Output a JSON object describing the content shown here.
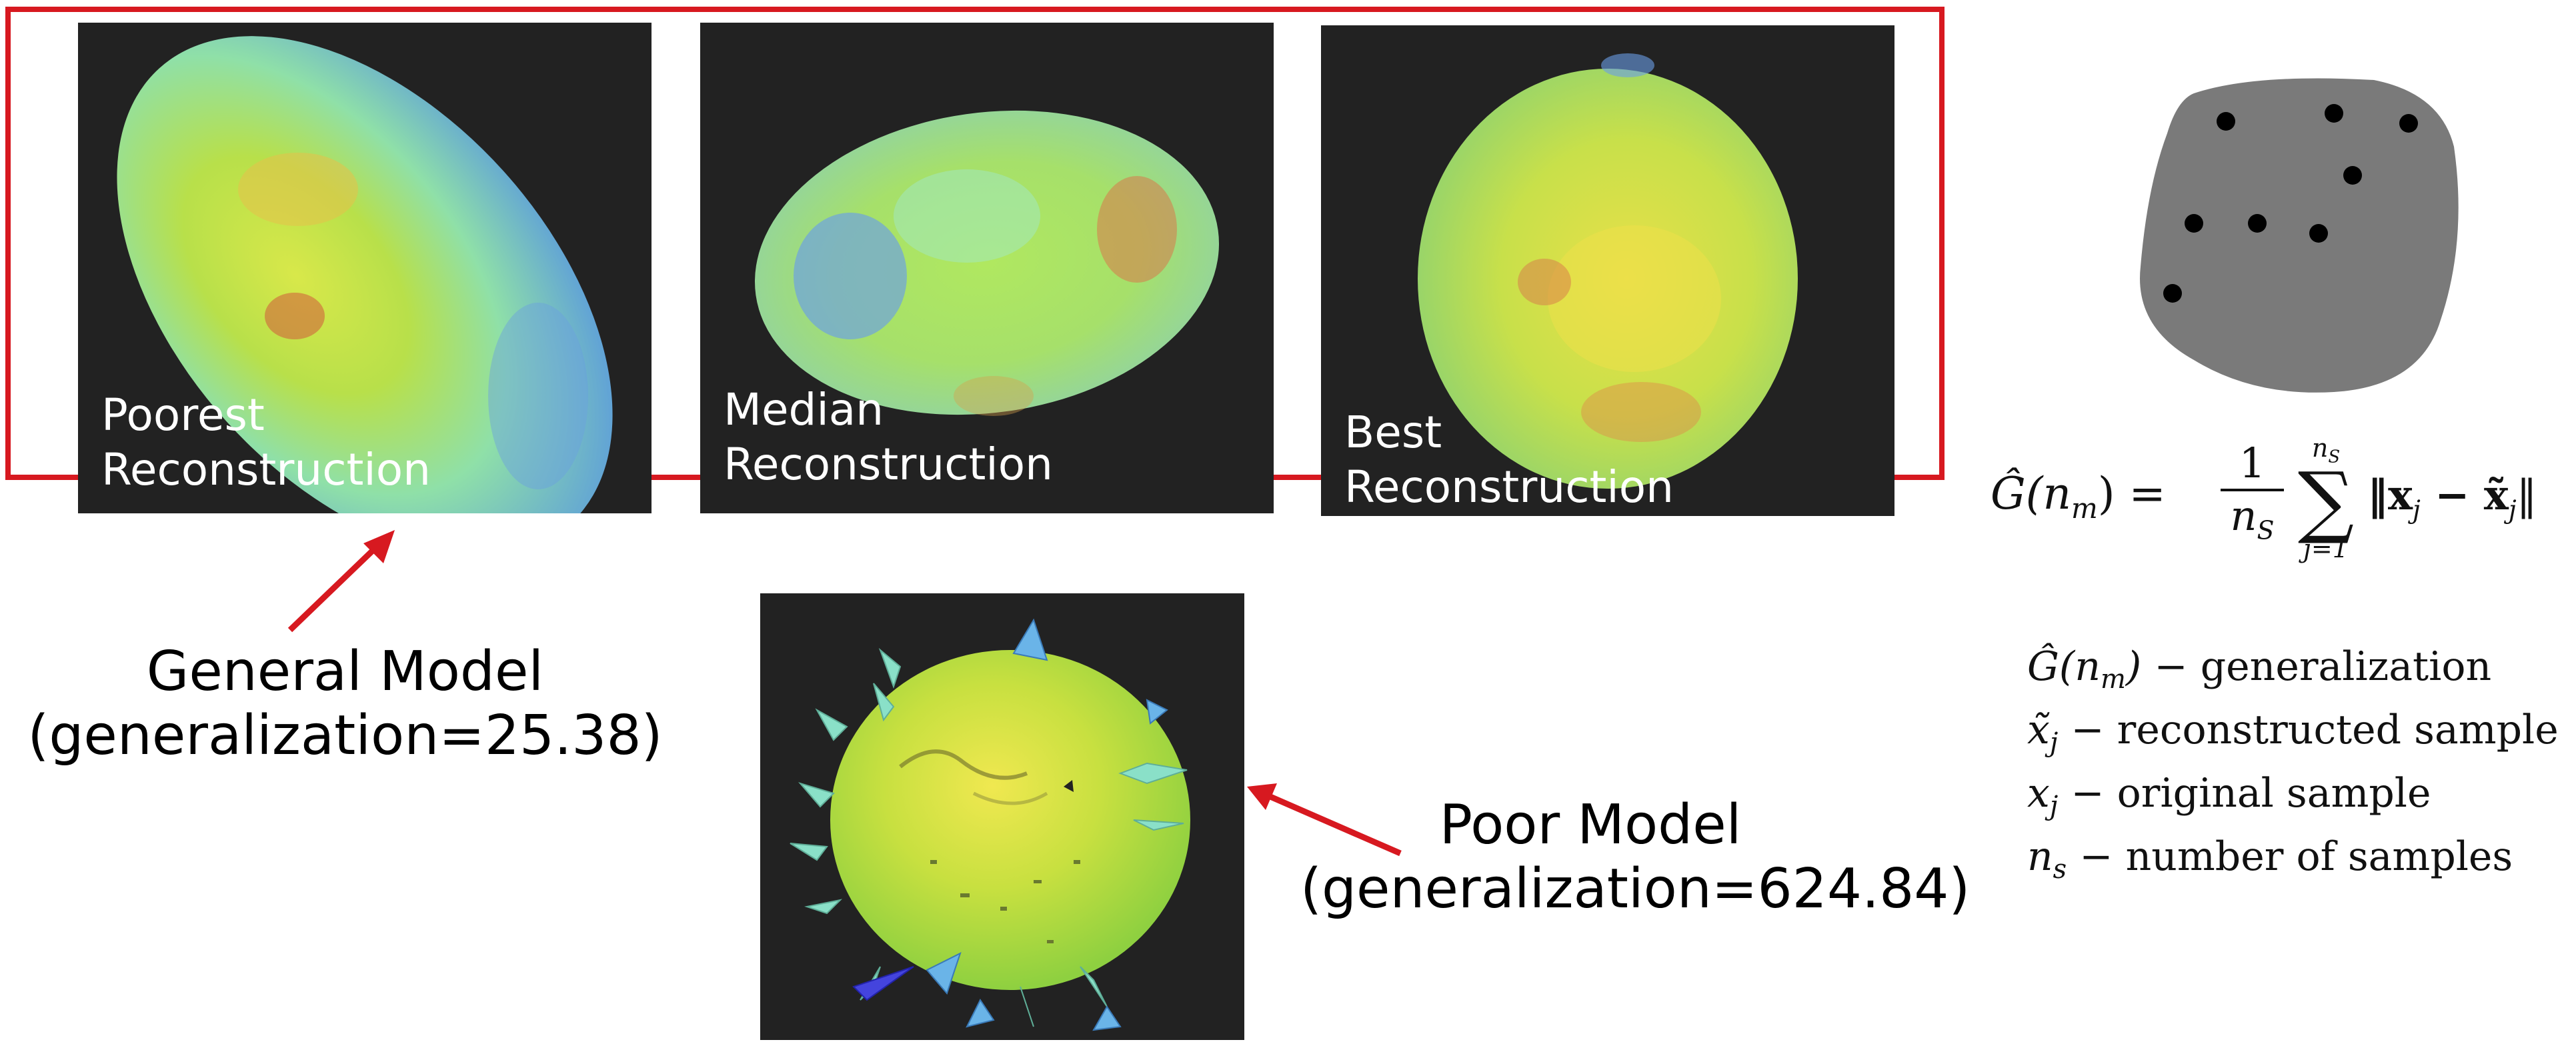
{
  "reconstructions": [
    {
      "line1": "Poorest",
      "line2": "Reconstruction"
    },
    {
      "line1": "Median",
      "line2": "Reconstruction"
    },
    {
      "line1": "Best",
      "line2": "Reconstruction"
    }
  ],
  "general_model": {
    "title": "General Model",
    "detail": "(generalization=25.38)"
  },
  "poor_model": {
    "title": "Poor Model",
    "detail": "(generalization=624.84)"
  },
  "formula": {
    "lhs": "Ĝ(n",
    "lhs_sub": "m",
    "lhs_close": ") =",
    "frac_num": "1",
    "frac_den": "n",
    "frac_den_sub": "S",
    "sum_upper": "n",
    "sum_upper_sub": "S",
    "sum_lower": "j=1",
    "body": "‖x",
    "body_sub": "j",
    "body_mid": " − x̃",
    "body_sub2": "j",
    "body_end": "‖"
  },
  "legend": [
    {
      "sym": "Ĝ(n",
      "sub": "m",
      "tail": ")",
      "desc": " − generalization"
    },
    {
      "sym": "x̃",
      "sub": "j",
      "tail": "",
      "desc": " − reconstructed sample"
    },
    {
      "sym": "x",
      "sub": "j",
      "tail": "",
      "desc": " − original sample"
    },
    {
      "sym": "n",
      "sub": "s",
      "tail": "",
      "desc": " − number of samples"
    }
  ],
  "colors": {
    "frame": "#d71920",
    "arrow": "#d71920",
    "panel_bg": "#222222",
    "blob": "#7a7a7a",
    "dot": "#000000"
  }
}
